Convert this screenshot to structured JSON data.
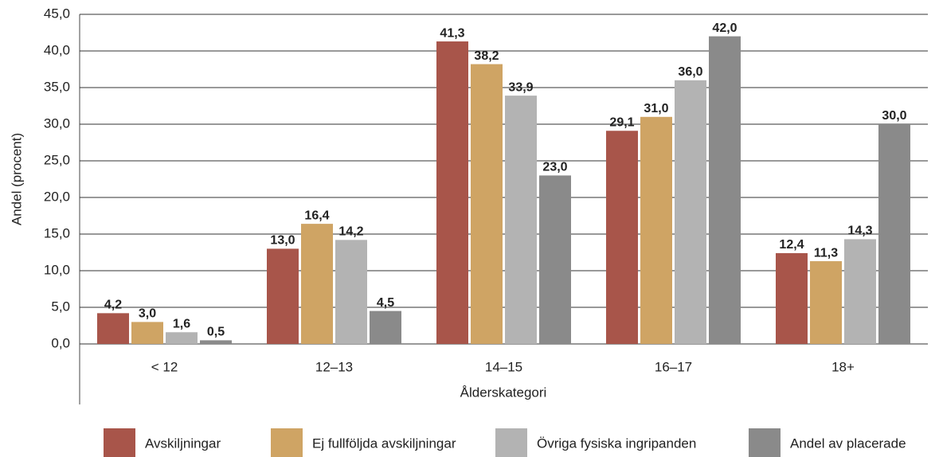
{
  "chart_data": {
    "type": "bar",
    "x_label": "Ålderskategori",
    "y_label": "Andel (procent)",
    "categories": [
      "< 12",
      "12–13",
      "14–15",
      "16–17",
      "18+"
    ],
    "series": [
      {
        "name": "Avskiljningar",
        "color": "#a8554a",
        "values": [
          4.2,
          13.0,
          41.3,
          29.1,
          12.4
        ],
        "value_labels": [
          "4,2",
          "13,0",
          "41,3",
          "29,1",
          "12,4"
        ]
      },
      {
        "name": "Ej fullföljda avskiljningar",
        "color": "#cfa464",
        "values": [
          3.0,
          16.4,
          38.2,
          31.0,
          11.3
        ],
        "value_labels": [
          "3,0",
          "16,4",
          "38,2",
          "31,0",
          "11,3"
        ]
      },
      {
        "name": "Övriga fysiska ingripanden",
        "color": "#b3b3b3",
        "values": [
          1.6,
          14.2,
          33.9,
          36.0,
          14.3
        ],
        "value_labels": [
          "1,6",
          "14,2",
          "33,9",
          "36,0",
          "14,3"
        ]
      },
      {
        "name": "Andel av placerade",
        "color": "#8a8a8a",
        "values": [
          0.5,
          4.5,
          23.0,
          42.0,
          30.0
        ],
        "value_labels": [
          "0,5",
          "4,5",
          "23,0",
          "42,0",
          "30,0"
        ]
      }
    ],
    "ylim": [
      0,
      45
    ],
    "yticks": [
      {
        "value": 0,
        "label": "0,0"
      },
      {
        "value": 5,
        "label": "5,0"
      },
      {
        "value": 10,
        "label": "10,0"
      },
      {
        "value": 15,
        "label": "15,0"
      },
      {
        "value": 20,
        "label": "20,0"
      },
      {
        "value": 25,
        "label": "25,0"
      },
      {
        "value": 30,
        "label": "30,0"
      },
      {
        "value": 35,
        "label": "35,0"
      },
      {
        "value": 40,
        "label": "40,0"
      },
      {
        "value": 45,
        "label": "45,0"
      }
    ],
    "grid": true,
    "legend": "bottom"
  }
}
